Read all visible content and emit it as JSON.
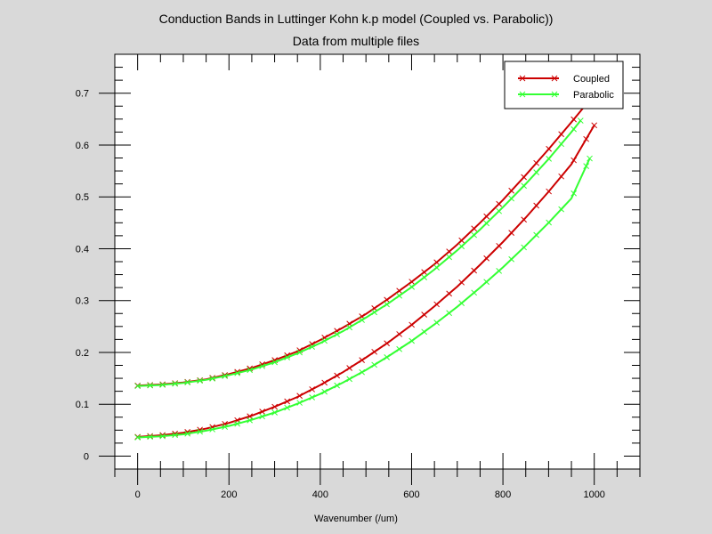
{
  "chart_data": {
    "type": "line",
    "title": "Conduction Bands in Luttinger Kohn k.p model (Coupled vs. Parabolic))",
    "subtitle": "Data from multiple files",
    "xlabel": "Wavenumber (/um)",
    "ylabel": "",
    "xlim": [
      -50,
      1100
    ],
    "ylim": [
      -0.025,
      0.775
    ],
    "x_ticks": [
      0,
      200,
      400,
      600,
      800,
      1000
    ],
    "y_ticks": [
      0,
      0.1,
      0.2,
      0.3,
      0.4,
      0.5,
      0.6,
      0.7
    ],
    "x_tick_labels": [
      "0",
      "200",
      "400",
      "600",
      "800",
      "1000"
    ],
    "y_tick_labels": [
      "0",
      "0.1",
      "0.2",
      "0.3",
      "0.4",
      "0.5",
      "0.6",
      "0.7"
    ],
    "grid": false,
    "legend_position": "top-right",
    "series": [
      {
        "name": "Coupled",
        "color": "#cc0000",
        "marker": "x",
        "curves": [
          {
            "x": [
              0,
              50,
              100,
              150,
              200,
              250,
              300,
              350,
              400,
              450,
              500,
              550,
              600,
              650,
              700,
              750,
              800,
              850,
              900,
              950,
              980
            ],
            "y": [
              0.136,
              0.138,
              0.142,
              0.148,
              0.158,
              0.17,
              0.185,
              0.202,
              0.224,
              0.248,
              0.274,
              0.304,
              0.336,
              0.37,
              0.408,
              0.45,
              0.494,
              0.542,
              0.592,
              0.644,
              0.676
            ]
          },
          {
            "x": [
              0,
              50,
              100,
              150,
              200,
              250,
              300,
              350,
              400,
              450,
              500,
              550,
              600,
              650,
              700,
              750,
              800,
              850,
              900,
              950,
              1000
            ],
            "y": [
              0.037,
              0.04,
              0.045,
              0.053,
              0.064,
              0.078,
              0.095,
              0.114,
              0.137,
              0.162,
              0.19,
              0.22,
              0.253,
              0.289,
              0.327,
              0.369,
              0.413,
              0.46,
              0.51,
              0.563,
              0.638
            ]
          }
        ]
      },
      {
        "name": "Parabolic",
        "color": "#33ff33",
        "marker": "x",
        "curves": [
          {
            "x": [
              0,
              50,
              100,
              150,
              200,
              250,
              300,
              350,
              400,
              450,
              500,
              550,
              600,
              650,
              700,
              750,
              800,
              850,
              900,
              950,
              970
            ],
            "y": [
              0.135,
              0.137,
              0.141,
              0.147,
              0.156,
              0.167,
              0.181,
              0.198,
              0.218,
              0.241,
              0.267,
              0.295,
              0.326,
              0.36,
              0.397,
              0.437,
              0.48,
              0.525,
              0.573,
              0.625,
              0.647
            ]
          },
          {
            "x": [
              0,
              50,
              100,
              150,
              200,
              250,
              300,
              350,
              400,
              450,
              500,
              550,
              600,
              650,
              700,
              750,
              800,
              850,
              900,
              950,
              990
            ],
            "y": [
              0.036,
              0.038,
              0.042,
              0.049,
              0.058,
              0.07,
              0.084,
              0.101,
              0.12,
              0.142,
              0.166,
              0.193,
              0.222,
              0.254,
              0.288,
              0.325,
              0.364,
              0.406,
              0.45,
              0.497,
              0.574
            ]
          }
        ]
      }
    ]
  }
}
